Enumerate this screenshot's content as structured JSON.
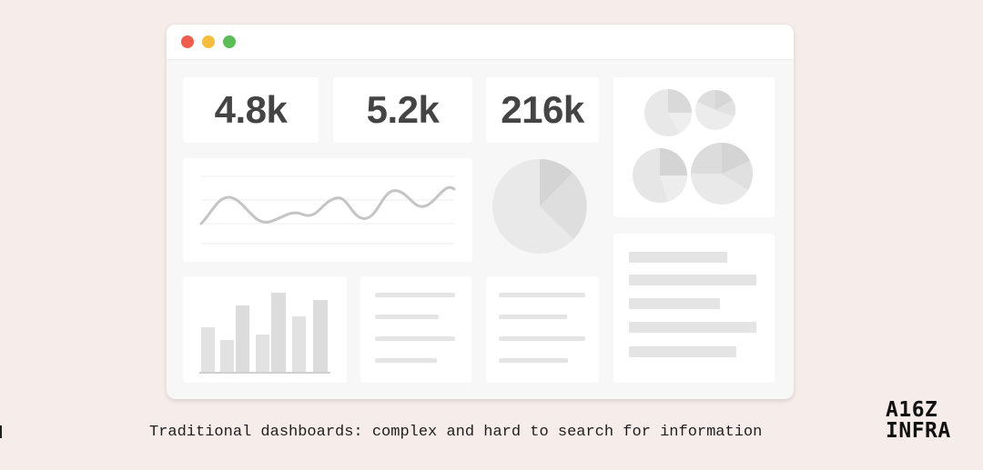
{
  "dashboard": {
    "stats": [
      "4.8k",
      "5.2k",
      "216k"
    ]
  },
  "caption": "Traditional dashboards: complex and hard to search for information",
  "logo": {
    "line1": "A16Z",
    "line2": "INFRA"
  },
  "colors": {
    "background": "#f6ecea",
    "close": "#ef5b4d",
    "minimize": "#f4bd3c",
    "maximize": "#5bbd57",
    "placeholder": "#e4e4e4",
    "line": "#c4c4c4"
  },
  "icons": {
    "window_controls": [
      "close-dot",
      "minimize-dot",
      "maximize-dot"
    ]
  }
}
